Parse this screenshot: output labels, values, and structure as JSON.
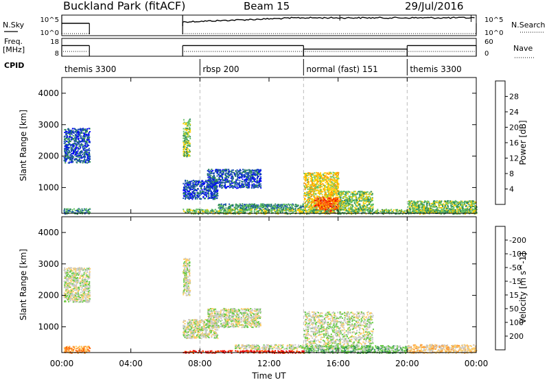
{
  "header": {
    "station": "Buckland Park (fitACF)",
    "beam": "Beam 15",
    "date": "29/Jul/2016"
  },
  "nsky_panel": {
    "left_label": "N.Sky",
    "right_label": "N.Search",
    "ticks_left": [
      "10^5",
      "10^0"
    ],
    "ticks_right": [
      "10^5",
      "10^0"
    ]
  },
  "freq_panel": {
    "left_label_1": "Freq.",
    "left_label_2": "[MHz]",
    "right_label": "Nave",
    "ticks_left": [
      "18",
      "8"
    ],
    "ticks_right": [
      "60",
      "0"
    ]
  },
  "cpid_panel": {
    "label": "CPID",
    "modes": [
      {
        "name": "themis 3300",
        "start": 0.0
      },
      {
        "name": "rbsp 200",
        "start": 8.0
      },
      {
        "name": "normal (fast) 151",
        "start": 14.0
      },
      {
        "name": "themis 3300",
        "start": 20.0
      }
    ]
  },
  "time_axis": {
    "label": "Time UT",
    "ticks": [
      "00:00",
      "04:00",
      "08:00",
      "12:00",
      "16:00",
      "20:00",
      "00:00"
    ]
  },
  "power_panel": {
    "ylabel": "Slant Range [km]",
    "yticks": [
      "1000",
      "2000",
      "3000",
      "4000"
    ],
    "colorbar_label": "Power [dB]",
    "colorbar_ticks": [
      "4",
      "8",
      "12",
      "16",
      "20",
      "24",
      "28"
    ],
    "colors": [
      "#0000ff",
      "#1a4fb0",
      "#2e8b57",
      "#66c266",
      "#ffd000",
      "#ff9900",
      "#ff6000",
      "#ee0000"
    ]
  },
  "velocity_panel": {
    "ylabel": "Slant Range [km]",
    "yticks": [
      "1000",
      "2000",
      "3000",
      "4000"
    ],
    "colorbar_label": "Velocity [m s^-1]",
    "colorbar_ticks": [
      "200",
      "100",
      "50",
      "15",
      "-15",
      "-50",
      "-100",
      "-200"
    ],
    "colors": [
      "#2020c0",
      "#3050c0",
      "#2e8b57",
      "#66cc44",
      "#c8c8c8",
      "#ffcc66",
      "#ff9933",
      "#ff6000",
      "#ee0000"
    ]
  },
  "chart_data": [
    {
      "type": "line",
      "title": "N.Sky",
      "x_range": [
        0,
        24
      ],
      "segments": [
        [
          0.0,
          1.6
        ],
        [
          7.0,
          24.0
        ]
      ]
    },
    {
      "type": "line",
      "title": "Freq.",
      "x_range": [
        0,
        24
      ],
      "segments": [
        {
          "x": [
            0.0,
            1.6
          ],
          "freq_mhz": 14.0
        },
        {
          "x": [
            7.0,
            14.0
          ],
          "freq_mhz": 14.0
        },
        {
          "x": [
            14.0,
            20.0
          ],
          "freq_mhz": 12.0
        },
        {
          "x": [
            20.0,
            24.0
          ],
          "freq_mhz": 14.0
        }
      ]
    },
    {
      "type": "heatmap",
      "title": "Power [dB]",
      "x_range": [
        0,
        24
      ],
      "ylim": [
        180,
        4500
      ],
      "blobs": [
        {
          "x": [
            0.1,
            1.6
          ],
          "y": [
            1800,
            2900
          ],
          "level": 1
        },
        {
          "x": [
            0.1,
            1.6
          ],
          "y": [
            180,
            350
          ],
          "level": 2
        },
        {
          "x": [
            7.0,
            7.4
          ],
          "y": [
            2000,
            3200
          ],
          "level": 3
        },
        {
          "x": [
            7.0,
            9.0
          ],
          "y": [
            650,
            1250
          ],
          "level": 1
        },
        {
          "x": [
            8.4,
            11.5
          ],
          "y": [
            1000,
            1600
          ],
          "level": 1
        },
        {
          "x": [
            9.0,
            14.0
          ],
          "y": [
            300,
            500
          ],
          "level": 2
        },
        {
          "x": [
            14.0,
            16.0
          ],
          "y": [
            300,
            1500
          ],
          "level": 4
        },
        {
          "x": [
            14.6,
            16.2
          ],
          "y": [
            300,
            700
          ],
          "level": 6
        },
        {
          "x": [
            15.2,
            15.8
          ],
          "y": [
            180,
            320
          ],
          "level": 7
        },
        {
          "x": [
            16.0,
            18.0
          ],
          "y": [
            300,
            900
          ],
          "level": 3
        },
        {
          "x": [
            7.0,
            24.0
          ],
          "y": [
            180,
            330
          ],
          "level": 3
        },
        {
          "x": [
            20.0,
            24.0
          ],
          "y": [
            200,
            600
          ],
          "level": 3
        }
      ]
    },
    {
      "type": "heatmap",
      "title": "Velocity [m s^-1]",
      "x_range": [
        0,
        24
      ],
      "ylim": [
        180,
        4500
      ],
      "blobs": [
        {
          "x": [
            0.1,
            1.6
          ],
          "y": [
            1800,
            2900
          ],
          "level": 4
        },
        {
          "x": [
            0.1,
            1.6
          ],
          "y": [
            180,
            400
          ],
          "level": 6
        },
        {
          "x": [
            7.0,
            7.4
          ],
          "y": [
            2000,
            3200
          ],
          "level": 4
        },
        {
          "x": [
            7.0,
            9.0
          ],
          "y": [
            650,
            1250
          ],
          "level": 4
        },
        {
          "x": [
            8.4,
            11.5
          ],
          "y": [
            1000,
            1600
          ],
          "level": 4
        },
        {
          "x": [
            7.0,
            14.0
          ],
          "y": [
            180,
            260
          ],
          "level": 8
        },
        {
          "x": [
            10.0,
            14.0
          ],
          "y": [
            300,
            450
          ],
          "level": 4
        },
        {
          "x": [
            14.0,
            18.0
          ],
          "y": [
            300,
            1500
          ],
          "level": 4
        },
        {
          "x": [
            14.0,
            20.0
          ],
          "y": [
            180,
            420
          ],
          "level": 3
        },
        {
          "x": [
            20.0,
            24.0
          ],
          "y": [
            180,
            450
          ],
          "level": 5
        }
      ]
    }
  ]
}
